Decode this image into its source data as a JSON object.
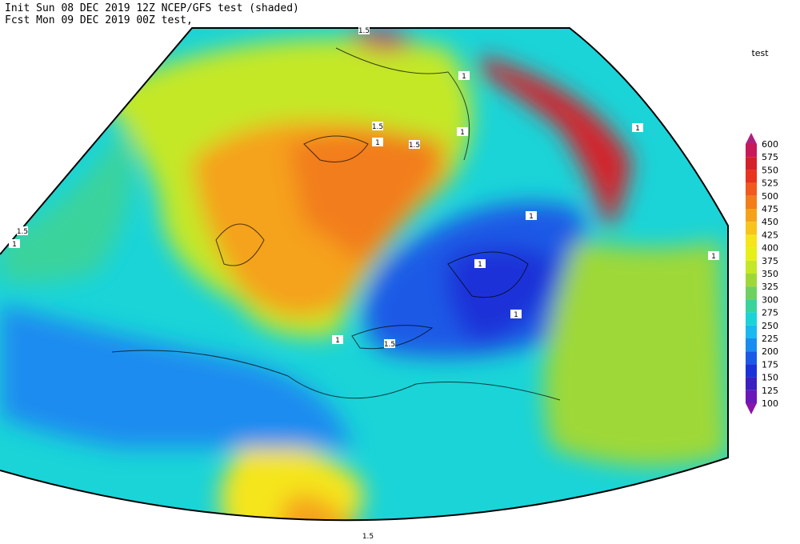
{
  "header": {
    "line1": "Init  Sun 08 DEC 2019 12Z  NCEP/GFS test (shaded)",
    "line2": "Fcst Mon 09 DEC 2019 00Z test,"
  },
  "legend": {
    "title": "test",
    "levels": [
      "600",
      "575",
      "550",
      "525",
      "500",
      "475",
      "450",
      "425",
      "400",
      "375",
      "350",
      "325",
      "300",
      "275",
      "250",
      "225",
      "200",
      "175",
      "150",
      "125",
      "100"
    ],
    "colors": [
      "#b0207e",
      "#c81a5a",
      "#d4202a",
      "#e8331e",
      "#f05a1e",
      "#f27d1a",
      "#f5a21a",
      "#f8c41a",
      "#f5e51a",
      "#e6f016",
      "#c4e828",
      "#9ed838",
      "#6fd060",
      "#3ad39c",
      "#1ad4d8",
      "#1ab8f0",
      "#1a8cf0",
      "#1a5ae6",
      "#1a32d8",
      "#3c20c0",
      "#6a18b8",
      "#8a14a8"
    ]
  },
  "contour_labels": [
    "1.5",
    "1",
    "1.5",
    "1",
    "1.5",
    "1",
    "1",
    "1.5",
    "1",
    "1",
    "1",
    "1",
    "1",
    "1.5",
    "1",
    "1.5"
  ]
}
